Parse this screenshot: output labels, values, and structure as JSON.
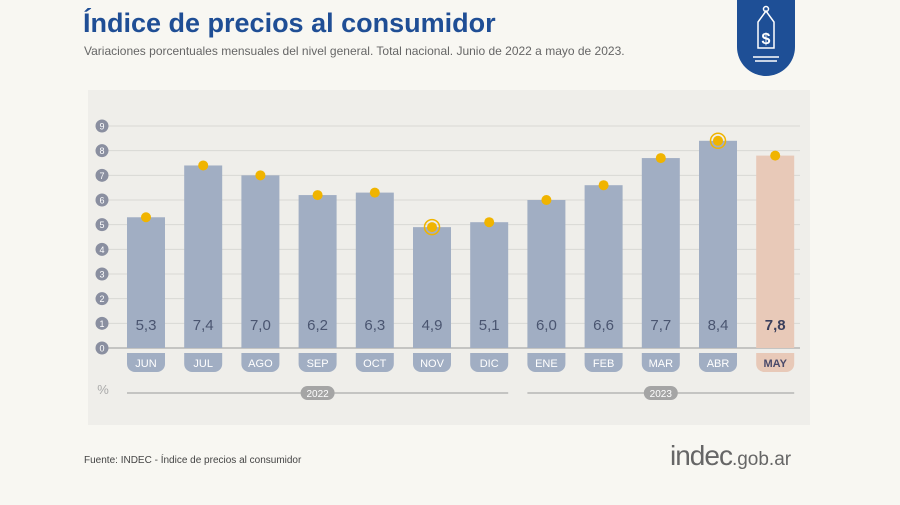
{
  "header": {
    "title": "Índice de precios al consumidor",
    "subtitle": "Variaciones porcentuales mensuales del nivel general. Total nacional. Junio de 2022 a mayo de 2023."
  },
  "icon": "price-tag-dollar-icon",
  "footer": {
    "source": "Fuente: INDEC - Índice de precios al consumidor",
    "logo_main": "indec",
    "logo_suffix": ".gob.ar"
  },
  "colors": {
    "bar": "#a1aec3",
    "bar_highlight": "#e8c9b8",
    "dot": "#f0b400",
    "title": "#1f4e95",
    "axis_badge": "#8a8fa0"
  },
  "chart_data": {
    "type": "bar",
    "title": "Índice de precios al consumidor",
    "categories": [
      "JUN",
      "JUL",
      "AGO",
      "SEP",
      "OCT",
      "NOV",
      "DIC",
      "ENE",
      "FEB",
      "MAR",
      "ABR",
      "MAY"
    ],
    "values": [
      5.3,
      7.4,
      7.0,
      6.2,
      6.3,
      4.9,
      5.1,
      6.0,
      6.6,
      7.7,
      8.4,
      7.8
    ],
    "value_labels": [
      "5,3",
      "7,4",
      "7,0",
      "6,2",
      "6,3",
      "4,9",
      "5,1",
      "6,0",
      "6,6",
      "7,7",
      "8,4",
      "7,8"
    ],
    "ringed": [
      "NOV",
      "ABR"
    ],
    "highlight": "MAY",
    "ylabel": "%",
    "yticks": [
      "0",
      "1",
      "2",
      "3",
      "4",
      "5",
      "6",
      "7",
      "8",
      "9"
    ],
    "ylim": [
      0,
      9
    ],
    "groups": [
      {
        "label": "2022",
        "from": 0,
        "to": 6
      },
      {
        "label": "2023",
        "from": 7,
        "to": 11
      }
    ],
    "grid": true
  }
}
